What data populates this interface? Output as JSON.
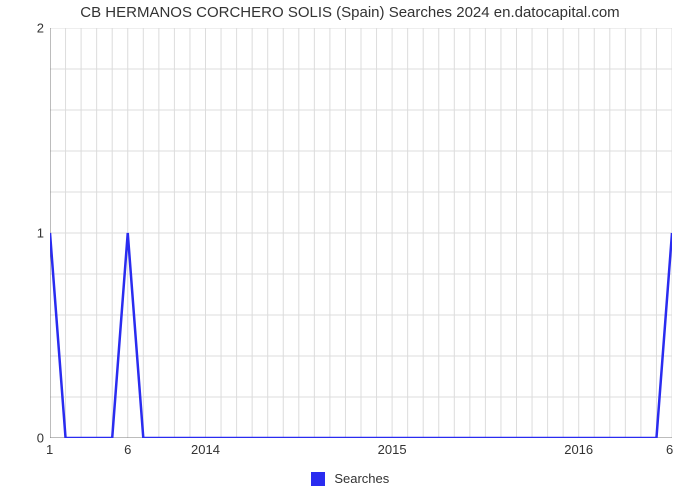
{
  "chart": {
    "type": "line",
    "title": "CB HERMANOS CORCHERO SOLIS (Spain) Searches 2024 en.datocapital.com",
    "title_fontsize": 15,
    "title_color": "#333333",
    "background_color": "#ffffff",
    "grid_color": "#dcdcdc",
    "axis_color": "#7a7a7a",
    "line_color": "#222cfc",
    "line_color_hex": "#2a2cf0",
    "line_width": 2.5,
    "ylim": [
      0,
      2
    ],
    "y_major_ticks": [
      0,
      1,
      2
    ],
    "y_minor_per_major": 4,
    "x_major_labels": [
      "2014",
      "2015",
      "2016"
    ],
    "x_corner_left_label": "1",
    "x_corner_right_label": "6",
    "x_extra_tick_label": "6",
    "x_extra_tick_fraction": 0.125,
    "x_range_units": 40,
    "x_major_positions_units": [
      10,
      22,
      34
    ],
    "x_minor_step_units": 1,
    "series": {
      "name": "Searches",
      "x_units": [
        0,
        1,
        2,
        3,
        4,
        5,
        6,
        7,
        8,
        9,
        10,
        11,
        12,
        13,
        14,
        15,
        16,
        17,
        18,
        19,
        20,
        21,
        22,
        23,
        24,
        25,
        26,
        27,
        28,
        29,
        30,
        31,
        32,
        33,
        34,
        35,
        36,
        37,
        38,
        39,
        40
      ],
      "y": [
        1,
        0,
        0,
        0,
        0,
        1,
        0,
        0,
        0,
        0,
        0,
        0,
        0,
        0,
        0,
        0,
        0,
        0,
        0,
        0,
        0,
        0,
        0,
        0,
        0,
        0,
        0,
        0,
        0,
        0,
        0,
        0,
        0,
        0,
        0,
        0,
        0,
        0,
        0,
        0,
        1
      ]
    },
    "legend": {
      "label": "Searches",
      "swatch_color": "#2a2cf0",
      "text_color": "#333333",
      "fontsize": 13
    }
  }
}
